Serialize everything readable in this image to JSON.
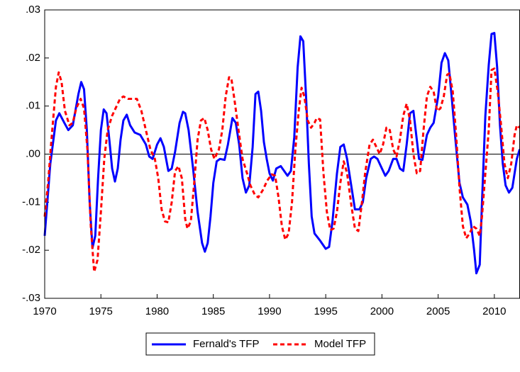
{
  "chart_data": {
    "type": "line",
    "xlim": [
      1970,
      2012.25
    ],
    "xticks": [
      1970,
      1975,
      1980,
      1985,
      1990,
      1995,
      2000,
      2005,
      2010
    ],
    "ylim": [
      -0.03,
      0.03
    ],
    "yticks": [
      {
        "value": -0.03,
        "label": "-.03"
      },
      {
        "value": -0.02,
        "label": "-.02"
      },
      {
        "value": -0.01,
        "label": "-.01"
      },
      {
        "value": 0,
        "label": ".00"
      },
      {
        "value": 0.01,
        "label": ".01"
      },
      {
        "value": 0.02,
        "label": ".02"
      },
      {
        "value": 0.03,
        "label": ".03"
      }
    ],
    "legend": "bottom",
    "series": [
      {
        "name": "Fernald's TFP",
        "color": "#0000ff",
        "dash": "solid",
        "x": [
          1970.0,
          1970.5,
          1971.0,
          1971.3,
          1971.75,
          1972.1,
          1972.5,
          1973.0,
          1973.25,
          1973.5,
          1973.75,
          1974.0,
          1974.25,
          1974.5,
          1974.75,
          1975.0,
          1975.25,
          1975.5,
          1975.75,
          1976.0,
          1976.25,
          1976.5,
          1976.75,
          1977.0,
          1977.3,
          1977.6,
          1978.0,
          1978.5,
          1979.0,
          1979.3,
          1979.6,
          1980.0,
          1980.3,
          1980.6,
          1981.0,
          1981.3,
          1981.6,
          1982.0,
          1982.3,
          1982.5,
          1982.8,
          1983.2,
          1983.6,
          1984.0,
          1984.25,
          1984.5,
          1984.75,
          1985.0,
          1985.3,
          1985.6,
          1986.0,
          1986.3,
          1986.7,
          1987.0,
          1987.3,
          1987.6,
          1987.9,
          1988.2,
          1988.5,
          1988.75,
          1989.0,
          1989.25,
          1989.5,
          1989.75,
          1990.0,
          1990.3,
          1990.6,
          1991.0,
          1991.3,
          1991.6,
          1991.9,
          1992.2,
          1992.5,
          1992.75,
          1993.0,
          1993.25,
          1993.5,
          1993.75,
          1994.0,
          1994.5,
          1995.0,
          1995.3,
          1995.6,
          1996.0,
          1996.3,
          1996.6,
          1996.9,
          1997.3,
          1997.6,
          1998.0,
          1998.3,
          1998.6,
          1999.0,
          1999.3,
          1999.6,
          2000.0,
          2000.3,
          2000.6,
          2001.0,
          2001.3,
          2001.6,
          2001.9,
          2002.2,
          2002.5,
          2002.8,
          2003.0,
          2003.3,
          2003.6,
          2004.0,
          2004.3,
          2004.6,
          2005.0,
          2005.3,
          2005.6,
          2005.9,
          2006.2,
          2006.5,
          2006.9,
          2007.2,
          2007.6,
          2007.9,
          2008.2,
          2008.4,
          2008.7,
          2008.9,
          2009.2,
          2009.5,
          2009.75,
          2010.0,
          2010.25,
          2010.5,
          2010.75,
          2011.0,
          2011.3,
          2011.6,
          2012.0,
          2012.25
        ],
        "values": [
          -0.017,
          -0.002,
          0.007,
          0.0085,
          0.0065,
          0.005,
          0.006,
          0.0125,
          0.015,
          0.0135,
          0.005,
          -0.01,
          -0.0195,
          -0.017,
          -0.005,
          0.005,
          0.0093,
          0.0085,
          0.003,
          -0.003,
          -0.0057,
          -0.003,
          0.003,
          0.007,
          0.0082,
          0.006,
          0.0045,
          0.004,
          0.002,
          -0.0005,
          -0.001,
          0.002,
          0.0033,
          0.0015,
          -0.0035,
          -0.003,
          0.0005,
          0.0065,
          0.0088,
          0.0085,
          0.005,
          -0.003,
          -0.012,
          -0.0185,
          -0.0203,
          -0.0185,
          -0.013,
          -0.006,
          -0.0015,
          -0.001,
          -0.0012,
          0.002,
          0.0075,
          0.0065,
          0.002,
          -0.005,
          -0.008,
          -0.0065,
          0.0015,
          0.0125,
          0.013,
          0.009,
          0.0025,
          -0.001,
          -0.004,
          -0.0055,
          -0.003,
          -0.0025,
          -0.0035,
          -0.0045,
          -0.0035,
          0.0035,
          0.018,
          0.0245,
          0.0235,
          0.012,
          -0.002,
          -0.013,
          -0.0165,
          -0.018,
          -0.0197,
          -0.0193,
          -0.014,
          -0.004,
          0.0015,
          0.002,
          -0.001,
          -0.007,
          -0.0115,
          -0.0115,
          -0.01,
          -0.005,
          -0.001,
          -0.0005,
          -0.001,
          -0.003,
          -0.0045,
          -0.0035,
          -0.001,
          -0.001,
          -0.003,
          -0.0035,
          0.002,
          0.0085,
          0.009,
          0.005,
          -0.001,
          -0.0012,
          0.004,
          0.0055,
          0.0065,
          0.012,
          0.019,
          0.021,
          0.0195,
          0.012,
          0.004,
          -0.006,
          -0.009,
          -0.0105,
          -0.014,
          -0.02,
          -0.0248,
          -0.023,
          -0.01,
          0.008,
          0.0185,
          0.025,
          0.0252,
          0.018,
          0.006,
          -0.002,
          -0.0065,
          -0.008,
          -0.007,
          -0.001,
          0.001
        ]
      },
      {
        "name": "Model TFP",
        "color": "#ff0000",
        "dash": "dashed",
        "x": [
          1970.0,
          1970.3,
          1970.6,
          1971.0,
          1971.25,
          1971.5,
          1971.8,
          1972.2,
          1972.5,
          1972.8,
          1973.2,
          1973.5,
          1973.8,
          1974.1,
          1974.4,
          1974.7,
          1975.0,
          1975.3,
          1975.6,
          1976.0,
          1976.3,
          1976.7,
          1977.0,
          1977.4,
          1977.8,
          1978.2,
          1978.6,
          1979.0,
          1979.4,
          1979.8,
          1980.1,
          1980.4,
          1980.7,
          1981.0,
          1981.3,
          1981.6,
          1981.9,
          1982.2,
          1982.5,
          1982.7,
          1983.0,
          1983.3,
          1983.6,
          1983.9,
          1984.2,
          1984.5,
          1984.8,
          1985.1,
          1985.5,
          1985.8,
          1986.1,
          1986.4,
          1986.6,
          1986.9,
          1987.3,
          1987.6,
          1988.0,
          1988.3,
          1988.7,
          1989.0,
          1989.4,
          1989.8,
          1990.2,
          1990.5,
          1990.8,
          1991.1,
          1991.4,
          1991.7,
          1992.0,
          1992.3,
          1992.6,
          1992.85,
          1993.1,
          1993.4,
          1993.7,
          1994.0,
          1994.2,
          1994.5,
          1994.8,
          1995.1,
          1995.4,
          1995.7,
          1996.0,
          1996.3,
          1996.6,
          1996.9,
          1997.3,
          1997.6,
          1997.9,
          1998.2,
          1998.5,
          1998.9,
          1999.2,
          1999.5,
          1999.8,
          2000.1,
          2000.4,
          2000.7,
          2001.0,
          2001.3,
          2001.6,
          2001.9,
          2002.2,
          2002.5,
          2002.8,
          2003.1,
          2003.4,
          2003.7,
          2004.0,
          2004.3,
          2004.6,
          2004.9,
          2005.2,
          2005.5,
          2005.8,
          2006.0,
          2006.3,
          2006.6,
          2006.9,
          2007.2,
          2007.5,
          2007.8,
          2008.1,
          2008.4,
          2008.7,
          2008.9,
          2009.2,
          2009.5,
          2009.75,
          2010.0,
          2010.3,
          2010.6,
          2010.9,
          2011.2,
          2011.5,
          2011.8,
          2012.0,
          2012.25
        ],
        "values": [
          -0.013,
          -0.006,
          0.003,
          0.014,
          0.017,
          0.015,
          0.009,
          0.006,
          0.0065,
          0.0095,
          0.0115,
          0.0095,
          0.001,
          -0.015,
          -0.0245,
          -0.022,
          -0.012,
          -0.001,
          0.005,
          0.008,
          0.0095,
          0.0115,
          0.012,
          0.0115,
          0.0115,
          0.0115,
          0.009,
          0.005,
          0.001,
          -0.001,
          -0.005,
          -0.0115,
          -0.014,
          -0.0142,
          -0.01,
          -0.0035,
          -0.0025,
          -0.005,
          -0.0135,
          -0.0155,
          -0.014,
          -0.006,
          0.003,
          0.007,
          0.0075,
          0.005,
          0.001,
          -0.001,
          0.001,
          0.005,
          0.012,
          0.016,
          0.0158,
          0.011,
          0.004,
          -0.001,
          -0.004,
          -0.0065,
          -0.0085,
          -0.009,
          -0.0075,
          -0.0055,
          -0.0042,
          -0.0045,
          -0.009,
          -0.015,
          -0.0178,
          -0.0165,
          -0.01,
          0.001,
          0.009,
          0.0138,
          0.012,
          0.007,
          0.0055,
          0.0065,
          0.0075,
          0.0072,
          -0.004,
          -0.012,
          -0.0158,
          -0.0155,
          -0.012,
          -0.006,
          -0.0015,
          -0.004,
          -0.011,
          -0.0155,
          -0.016,
          -0.0105,
          -0.004,
          0.002,
          0.003,
          0.0015,
          0,
          0.002,
          0.0055,
          0.005,
          0.001,
          -0.0005,
          0.003,
          0.008,
          0.0105,
          0.007,
          0,
          -0.004,
          -0.0035,
          0.005,
          0.012,
          0.014,
          0.013,
          0.009,
          0.0095,
          0.012,
          0.0165,
          0.0168,
          0.013,
          0.004,
          -0.007,
          -0.015,
          -0.0175,
          -0.0165,
          -0.015,
          -0.0155,
          -0.017,
          -0.013,
          -0.004,
          0.005,
          0.0175,
          0.0178,
          0.013,
          0.006,
          -0.002,
          -0.005,
          -0.002,
          0.004,
          0.006,
          0.0055
        ]
      }
    ]
  }
}
